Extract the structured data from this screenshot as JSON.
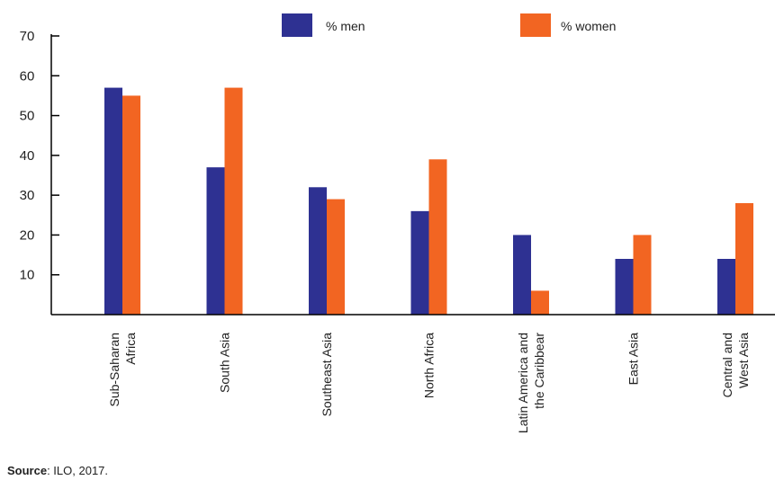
{
  "chart_data": {
    "type": "bar",
    "categories": [
      [
        "Sub-Saharan",
        "Africa"
      ],
      [
        "South Asia"
      ],
      [
        "Southeast Asia"
      ],
      [
        "North Africa"
      ],
      [
        "Latin America and",
        "the Caribbear"
      ],
      [
        "East Asia"
      ],
      [
        "Central and",
        "West Asia"
      ]
    ],
    "series": [
      {
        "name": "% men",
        "color": "#2e3192",
        "values": [
          57,
          37,
          32,
          26,
          20,
          14,
          14
        ]
      },
      {
        "name": "% women",
        "color": "#f26522",
        "values": [
          55,
          57,
          29,
          39,
          6,
          20,
          28
        ]
      }
    ],
    "yticks": [
      10,
      20,
      30,
      40,
      50,
      60,
      70
    ],
    "ylim": [
      0,
      70
    ],
    "grid": false,
    "legend_position": "top"
  },
  "source": {
    "label": "Source",
    "text": ": ILO, 2017."
  }
}
